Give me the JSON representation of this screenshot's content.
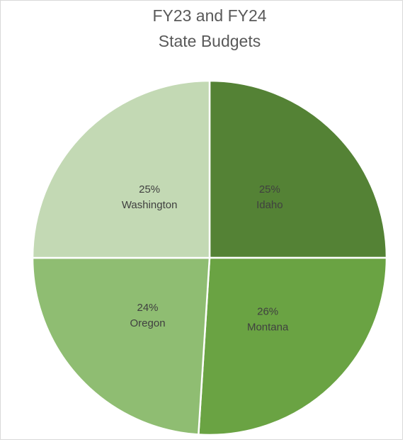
{
  "chart_data": {
    "type": "pie",
    "title": [
      "FY23 and FY24",
      "State Budgets"
    ],
    "categories": [
      "Idaho",
      "Montana",
      "Oregon",
      "Washington"
    ],
    "values": [
      25,
      26,
      24,
      25
    ],
    "value_labels": [
      "25%",
      "26%",
      "24%",
      "25%"
    ],
    "colors": [
      "#548235",
      "#6aa343",
      "#8fbd72",
      "#c3d9b4"
    ]
  }
}
